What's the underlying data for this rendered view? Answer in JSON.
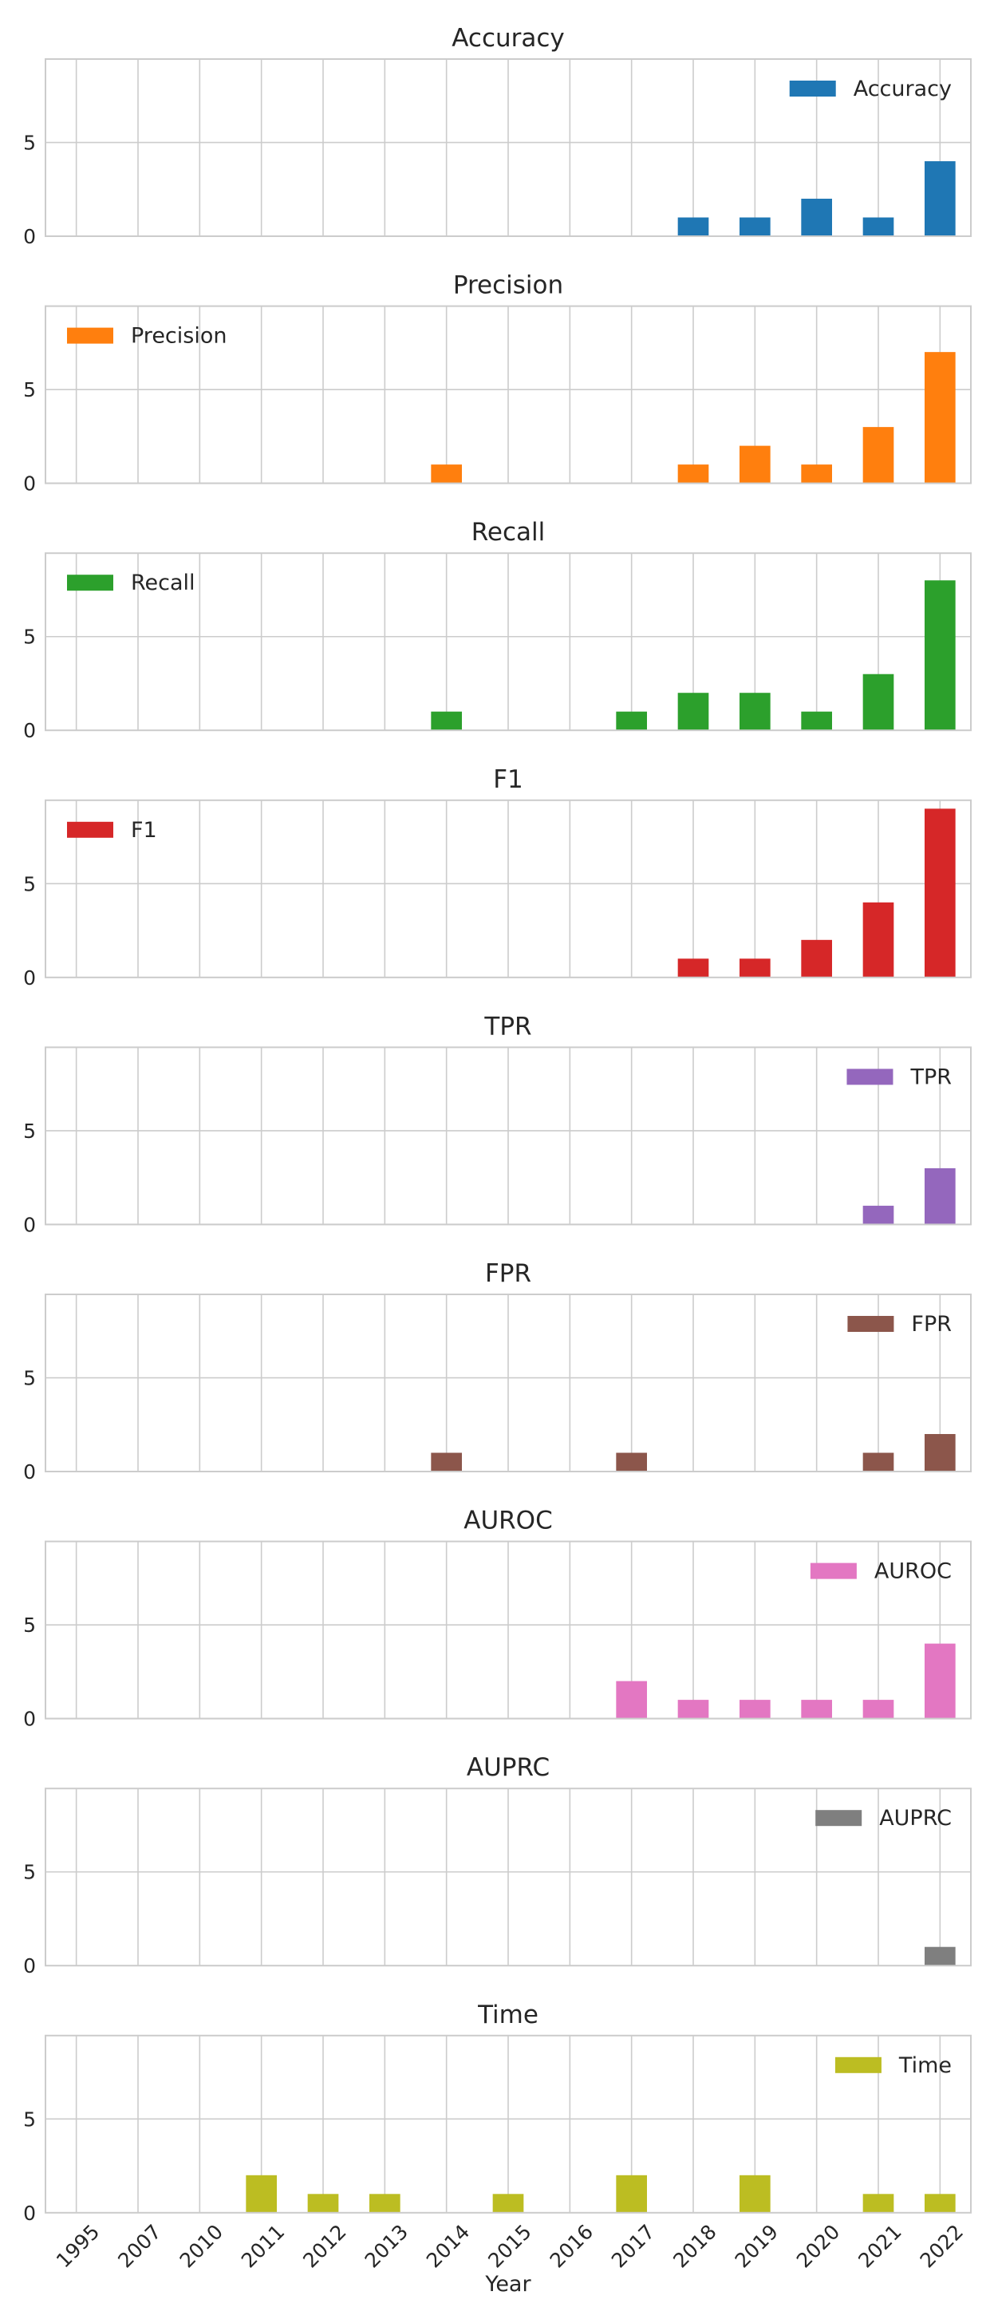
{
  "chart_data": {
    "type": "bar",
    "xlabel": "Year",
    "ylim": [
      0,
      9.45
    ],
    "yticks": [
      0,
      5
    ],
    "grid": true,
    "categories": [
      "1995",
      "2007",
      "2010",
      "2011",
      "2012",
      "2013",
      "2014",
      "2015",
      "2016",
      "2017",
      "2018",
      "2019",
      "2020",
      "2021",
      "2022"
    ],
    "panels": [
      {
        "title": "Accuracy",
        "legend": "Accuracy",
        "legend_loc": "top-right",
        "color": "#1f77b4",
        "values": [
          0,
          0,
          0,
          0,
          0,
          0,
          0,
          0,
          0,
          0,
          1,
          1,
          2,
          1,
          4
        ]
      },
      {
        "title": "Precision",
        "legend": "Precision",
        "legend_loc": "top-left",
        "color": "#ff7f0e",
        "values": [
          0,
          0,
          0,
          0,
          0,
          0,
          1,
          0,
          0,
          0,
          1,
          2,
          1,
          3,
          7
        ]
      },
      {
        "title": "Recall",
        "legend": "Recall",
        "legend_loc": "top-left",
        "color": "#2ca02c",
        "values": [
          0,
          0,
          0,
          0,
          0,
          0,
          1,
          0,
          0,
          1,
          2,
          2,
          1,
          3,
          8
        ]
      },
      {
        "title": "F1",
        "legend": "F1",
        "legend_loc": "top-left",
        "color": "#d62728",
        "values": [
          0,
          0,
          0,
          0,
          0,
          0,
          0,
          0,
          0,
          0,
          1,
          1,
          2,
          4,
          9
        ]
      },
      {
        "title": "TPR",
        "legend": "TPR",
        "legend_loc": "top-right",
        "color": "#9467bd",
        "values": [
          0,
          0,
          0,
          0,
          0,
          0,
          0,
          0,
          0,
          0,
          0,
          0,
          0,
          1,
          3
        ]
      },
      {
        "title": "FPR",
        "legend": "FPR",
        "legend_loc": "top-right",
        "color": "#8c564b",
        "values": [
          0,
          0,
          0,
          0,
          0,
          0,
          1,
          0,
          0,
          1,
          0,
          0,
          0,
          1,
          2
        ]
      },
      {
        "title": "AUROC",
        "legend": "AUROC",
        "legend_loc": "top-right",
        "color": "#e377c2",
        "values": [
          0,
          0,
          0,
          0,
          0,
          0,
          0,
          0,
          0,
          2,
          1,
          1,
          1,
          1,
          4
        ]
      },
      {
        "title": "AUPRC",
        "legend": "AUPRC",
        "legend_loc": "top-right",
        "color": "#7f7f7f",
        "values": [
          0,
          0,
          0,
          0,
          0,
          0,
          0,
          0,
          0,
          0,
          0,
          0,
          0,
          0,
          1
        ]
      },
      {
        "title": "Time",
        "legend": "Time",
        "legend_loc": "top-right",
        "color": "#bcbd22",
        "values": [
          0,
          0,
          0,
          2,
          1,
          1,
          0,
          1,
          0,
          2,
          0,
          2,
          0,
          1,
          1
        ]
      }
    ]
  }
}
